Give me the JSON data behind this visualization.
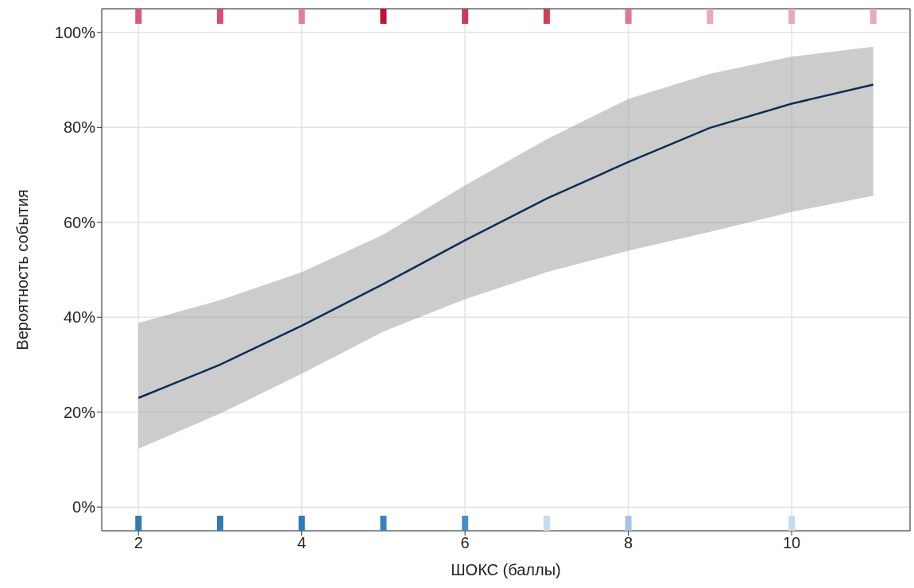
{
  "chart_data": {
    "type": "line",
    "xlabel": "ШОКС (баллы)",
    "ylabel": "Вероятность события",
    "x": [
      2,
      3,
      4,
      5,
      6,
      7,
      8,
      9,
      10,
      11
    ],
    "series": [
      {
        "color": "#0b2d55",
        "values": [
          23,
          30,
          38.2,
          47,
          56.2,
          65,
          72.7,
          79.9,
          85,
          89
        ],
        "lower": [
          12.3,
          19.7,
          28.1,
          37,
          43.8,
          49.5,
          54,
          58,
          62.2,
          65.6
        ],
        "upper": [
          38.8,
          43.6,
          49.5,
          57.4,
          67.8,
          77.5,
          86,
          91.3,
          94.9,
          97
        ]
      },
      {
        "type": "scatter",
        "marker": "square",
        "values": [
          103.5,
          103.5,
          103.5,
          103.5,
          103.5,
          103.5,
          103.5,
          103.5,
          103.5,
          103.5
        ],
        "colors": [
          "#d65a76",
          "#d4506c",
          "#df8196",
          "#c41230",
          "#cd3a58",
          "#cf3d5b",
          "#dc7a90",
          "#e9a9b7",
          "#e9a9b7",
          "#e9a9b7"
        ]
      },
      {
        "type": "scatter",
        "marker": "square",
        "values": [
          -3.5,
          -3.5,
          -3.5,
          -3.5,
          -3.5,
          -3.5,
          -3.5,
          null,
          -3.5,
          null
        ],
        "colors": [
          "#2e7bb8",
          "#2e7bb8",
          "#2e7bb8",
          "#3a83be",
          "#4a8ec4",
          "#c6dbee",
          "#a3c4e2",
          null,
          "#c6dbee",
          null
        ]
      }
    ],
    "xlim": [
      1.55,
      11.45
    ],
    "xticks": [
      2,
      4,
      6,
      8,
      10
    ],
    "ylim": [
      -5,
      105
    ],
    "yticks": [
      {
        "value": 0,
        "label": "0%"
      },
      {
        "value": 20,
        "label": "20%"
      },
      {
        "value": 40,
        "label": "40%"
      },
      {
        "value": 60,
        "label": "60%"
      },
      {
        "value": 80,
        "label": "80%"
      },
      {
        "value": 100,
        "label": "100%"
      }
    ],
    "grid": true,
    "marker": "none",
    "line_style": "solid"
  }
}
